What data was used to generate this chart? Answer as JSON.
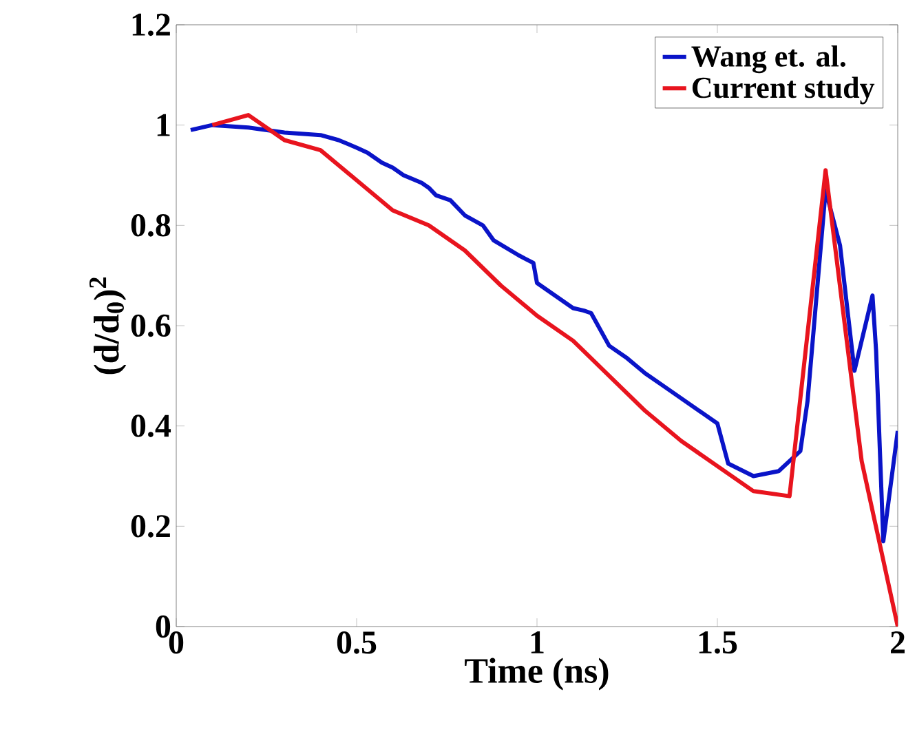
{
  "chart_data": {
    "type": "line",
    "xlabel": "Time (ns)",
    "ylabel": "(d/d$_{0}$)$^{2}$",
    "xlim": [
      0,
      2
    ],
    "ylim": [
      0,
      1.2
    ],
    "xticks": [
      0,
      0.5,
      1,
      1.5,
      2
    ],
    "yticks": [
      0,
      0.2,
      0.4,
      0.6,
      0.8,
      1,
      1.2
    ],
    "legend": "top right",
    "grid": false,
    "marker": "none",
    "line_style": "solid",
    "series": [
      {
        "name": "Wang et. al.",
        "color": "#0a14c8",
        "x": [
          0.04,
          0.1,
          0.2,
          0.3,
          0.4,
          0.45,
          0.5,
          0.53,
          0.57,
          0.6,
          0.63,
          0.68,
          0.7,
          0.72,
          0.76,
          0.8,
          0.85,
          0.88,
          0.95,
          0.99,
          1.0,
          1.05,
          1.1,
          1.13,
          1.15,
          1.2,
          1.25,
          1.3,
          1.35,
          1.4,
          1.45,
          1.5,
          1.53,
          1.6,
          1.67,
          1.7,
          1.73,
          1.75,
          1.8,
          1.84,
          1.88,
          1.93,
          1.94,
          1.96,
          2.0
        ],
        "values": [
          0.99,
          1.0,
          0.995,
          0.985,
          0.98,
          0.97,
          0.955,
          0.945,
          0.925,
          0.915,
          0.9,
          0.885,
          0.875,
          0.86,
          0.85,
          0.82,
          0.8,
          0.77,
          0.74,
          0.725,
          0.685,
          0.66,
          0.635,
          0.63,
          0.625,
          0.56,
          0.535,
          0.505,
          0.48,
          0.455,
          0.43,
          0.405,
          0.325,
          0.3,
          0.31,
          0.33,
          0.35,
          0.45,
          0.87,
          0.76,
          0.51,
          0.66,
          0.55,
          0.17,
          0.39
        ]
      },
      {
        "name": "Current study",
        "color": "#e8141e",
        "x": [
          0.1,
          0.2,
          0.3,
          0.4,
          0.5,
          0.6,
          0.7,
          0.8,
          0.9,
          1.0,
          1.1,
          1.2,
          1.3,
          1.4,
          1.5,
          1.6,
          1.7,
          1.8,
          1.9,
          2.0
        ],
        "values": [
          1.0,
          1.02,
          0.97,
          0.95,
          0.89,
          0.83,
          0.8,
          0.75,
          0.68,
          0.62,
          0.57,
          0.5,
          0.43,
          0.37,
          0.32,
          0.27,
          0.26,
          0.91,
          0.33,
          0.0
        ]
      }
    ]
  }
}
